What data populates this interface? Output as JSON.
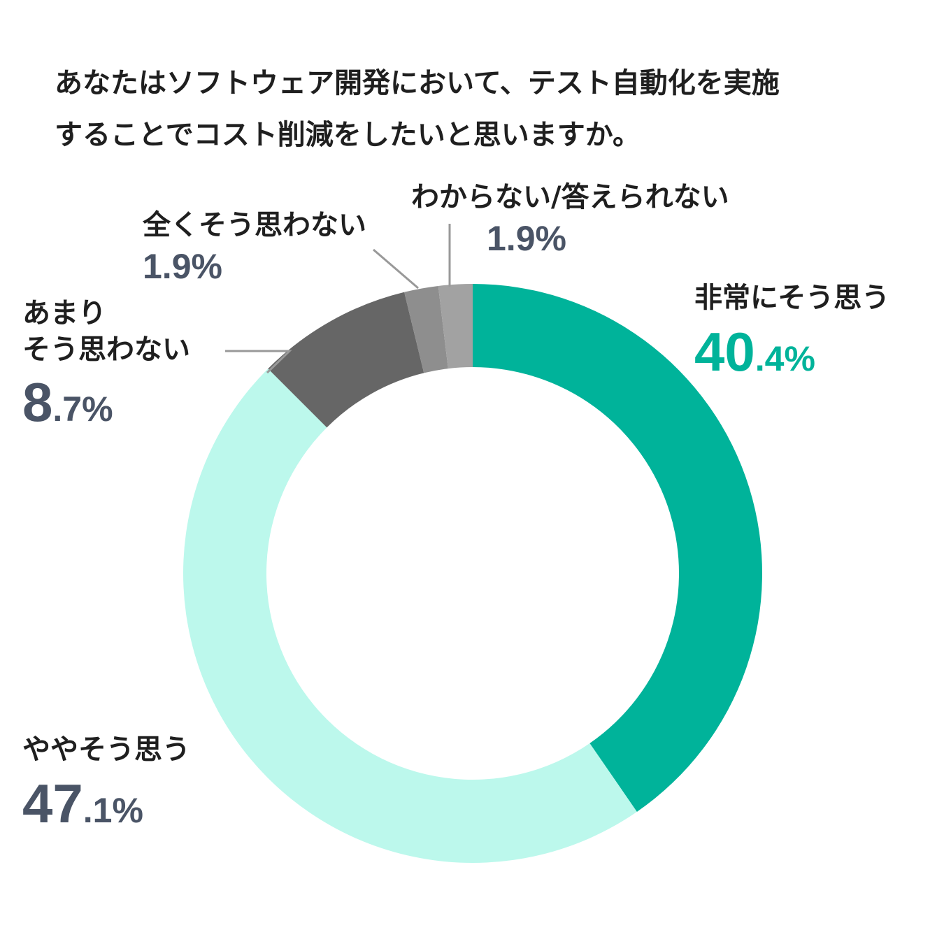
{
  "title_lines": [
    "あなたはソフトウェア開発において、テスト自動化を実施",
    "することでコスト削減をしたいと思いますか。"
  ],
  "colors": {
    "teal": "#00B39A",
    "mint": "#BCF8EC",
    "dark_gray": "#666666",
    "mid_gray": "#8E8E8E",
    "light_gray": "#A2A2A2",
    "slate": "#4A5466",
    "leader": "#999999"
  },
  "chart_data": {
    "type": "pie",
    "title": "あなたはソフトウェア開発において、テスト自動化を実施することでコスト削減をしたいと思いますか。",
    "donut": true,
    "unit": "%",
    "slices": [
      {
        "label": "非常にそう思う",
        "value": 40.4,
        "int": "40",
        "dec": ".4%",
        "color": "#00B39A",
        "label_color": "#00B39A"
      },
      {
        "label": "ややそう思う",
        "value": 47.1,
        "int": "47",
        "dec": ".1%",
        "color": "#BCF8EC",
        "label_color": "#4A5466"
      },
      {
        "label": "あまりそう思わない",
        "label_lines": [
          "あまり",
          "そう思わない"
        ],
        "value": 8.7,
        "int": "8",
        "dec": ".7%",
        "color": "#666666",
        "label_color": "#4A5466"
      },
      {
        "label": "全くそう思わない",
        "value": 1.9,
        "int": "1.9%",
        "dec": "",
        "color": "#8E8E8E",
        "label_color": "#4A5466"
      },
      {
        "label": "わからない/答えられない",
        "value": 1.9,
        "int": "1.9%",
        "dec": "",
        "color": "#A2A2A2",
        "label_color": "#4A5466"
      }
    ]
  }
}
